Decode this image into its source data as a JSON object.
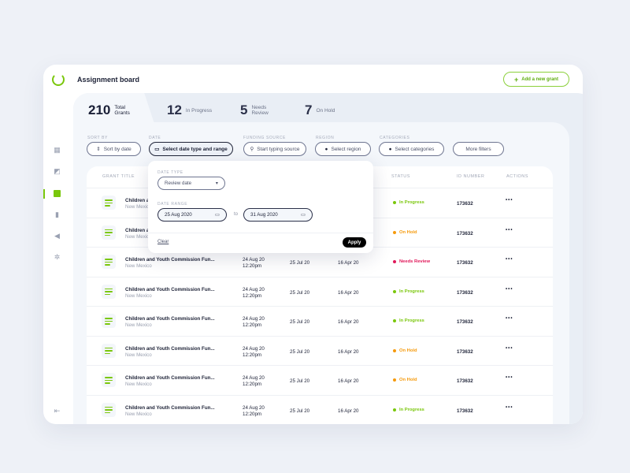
{
  "header": {
    "title": "Assignment board",
    "add_button": "Add a new grant",
    "add_icon": "+"
  },
  "stats": [
    {
      "value": "210",
      "label": "Total Grants"
    },
    {
      "value": "12",
      "label": "In Progress"
    },
    {
      "value": "5",
      "label": "Needs Review"
    },
    {
      "value": "7",
      "label": "On Hold"
    }
  ],
  "filters": {
    "sort_by": {
      "label": "SORT BY",
      "value": "Sort by date"
    },
    "date": {
      "label": "DATE",
      "value": "Select date type and range"
    },
    "funding": {
      "label": "FUNDING SOURCE",
      "placeholder": "Start typing source"
    },
    "region": {
      "label": "REGION",
      "value": "Select region"
    },
    "categories": {
      "label": "CATEGORIES",
      "value": "Select categories"
    },
    "more": "More filters"
  },
  "sidebar": {
    "items": [
      "dashboard-icon",
      "reports-icon",
      "board-icon",
      "bookmark-icon",
      "megaphone-icon",
      "settings-icon"
    ],
    "active": 2,
    "logout": "logout-icon"
  },
  "table": {
    "headers": {
      "title": "GRANT TITLE",
      "status": "STATUS",
      "id": "ID NUMBER",
      "actions": "ACTIONS"
    },
    "rows": [
      {
        "title": "Children a",
        "region": "New Mexico",
        "date1": "",
        "time1": "",
        "date2": "",
        "date3": "",
        "status": "In Progress",
        "id": "173632"
      },
      {
        "title": "Children a",
        "region": "New Mexico",
        "date1": "",
        "time1": "",
        "date2": "",
        "date3": "",
        "status": "On Hold",
        "id": "173632"
      },
      {
        "title": "Children and Youth Commission Fun...",
        "region": "New Mexico",
        "date1": "24 Aug 20",
        "time1": "12:20pm",
        "date2": "25 Jul 20",
        "date3": "16 Apr 20",
        "status": "Needs Review",
        "id": "173632"
      },
      {
        "title": "Children and Youth Commission Fun...",
        "region": "New Mexico",
        "date1": "24 Aug 20",
        "time1": "12:20pm",
        "date2": "25 Jul 20",
        "date3": "16 Apr 20",
        "status": "In Progress",
        "id": "173632"
      },
      {
        "title": "Children and Youth Commission Fun...",
        "region": "New Mexico",
        "date1": "24 Aug 20",
        "time1": "12:20pm",
        "date2": "25 Jul 20",
        "date3": "16 Apr 20",
        "status": "In Progress",
        "id": "173632"
      },
      {
        "title": "Children and Youth Commission Fun...",
        "region": "New Mexico",
        "date1": "24 Aug 20",
        "time1": "12:20pm",
        "date2": "25 Jul 20",
        "date3": "16 Apr 20",
        "status": "On Hold",
        "id": "173632"
      },
      {
        "title": "Children and Youth Commission Fun...",
        "region": "New Mexico",
        "date1": "24 Aug 20",
        "time1": "12:20pm",
        "date2": "25 Jul 20",
        "date3": "16 Apr 20",
        "status": "On Hold",
        "id": "173632"
      },
      {
        "title": "Children and Youth Commission Fun...",
        "region": "New Mexico",
        "date1": "24 Aug 20",
        "time1": "12:20pm",
        "date2": "25 Jul 20",
        "date3": "16 Apr 20",
        "status": "In Progress",
        "id": "173632"
      }
    ]
  },
  "status_colors": {
    "In Progress": "#7ac70c",
    "On Hold": "#f59a0c",
    "Needs Review": "#e0185a"
  },
  "popup": {
    "date_type_label": "DATE TYPE",
    "date_type": "Review date",
    "date_range_label": "DATE RANGE",
    "from": "25 Aug 2020",
    "to_label": "to",
    "to": "31 Aug 2020",
    "clear": "Clear",
    "apply": "Apply"
  },
  "colors": {
    "accent": "#7ac70c",
    "primary": "#1c2136"
  }
}
